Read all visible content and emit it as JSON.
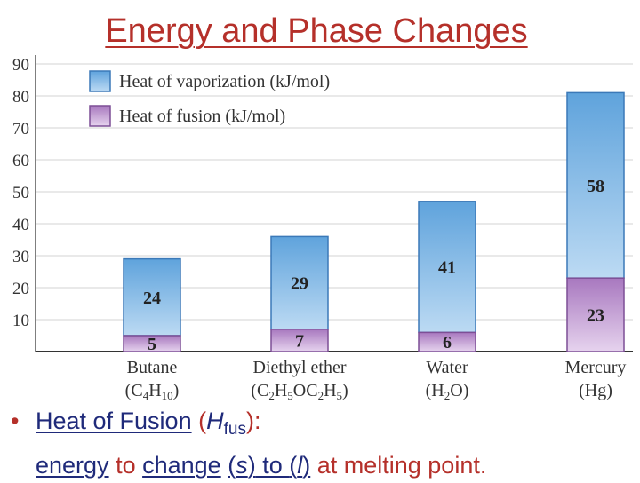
{
  "slide": {
    "title": "Energy and Phase Changes"
  },
  "chart_data": {
    "type": "bar",
    "stacked": true,
    "categories": [
      {
        "name": "Butane",
        "formula": [
          "C",
          "4",
          "H",
          "10"
        ]
      },
      {
        "name": "Diethyl ether",
        "formula": [
          "C",
          "2",
          "H",
          "5",
          "OC",
          "2",
          "H",
          "5"
        ]
      },
      {
        "name": "Water",
        "formula": [
          "H",
          "2",
          "O"
        ]
      },
      {
        "name": "Mercury",
        "formula": [
          "Hg"
        ]
      }
    ],
    "series": [
      {
        "name": "Heat of fusion (kJ/mol)",
        "values": [
          5,
          7,
          6,
          23
        ],
        "color": "#c9a7d4"
      },
      {
        "name": "Heat of vaporization (kJ/mol)",
        "values": [
          24,
          29,
          41,
          58
        ],
        "color": "#8fbfe6"
      }
    ],
    "legend_order": [
      "Heat of vaporization (kJ/mol)",
      "Heat of fusion (kJ/mol)"
    ],
    "ylim": [
      0,
      90
    ],
    "yticks": [
      10,
      20,
      30,
      40,
      50,
      60,
      70,
      80,
      90
    ],
    "grid": true,
    "legend_position": "top-left"
  },
  "bullet": {
    "marker": "•",
    "term": "Heat of Fusion",
    "paren_open": " (",
    "symbol_main": "H",
    "symbol_sub": "fus",
    "paren_close": "):",
    "energy": "energy",
    "to1": " to ",
    "change": "change",
    "space": " ",
    "from_state": "(s)",
    "to2": " to ",
    "to_state": "(l)",
    "tail": " at melting point."
  }
}
